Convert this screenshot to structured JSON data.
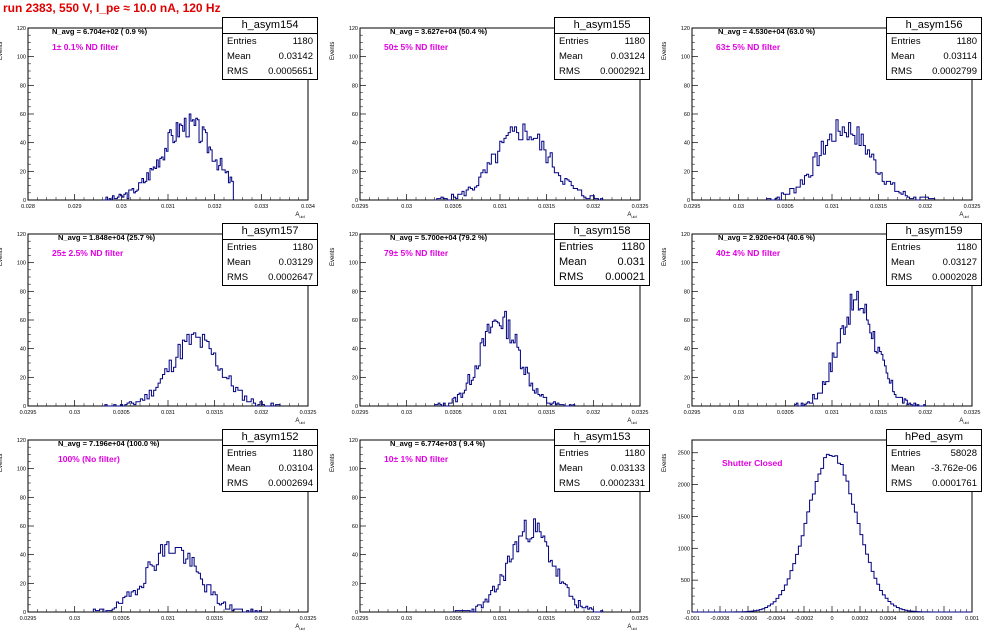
{
  "header": {
    "run_title": "run 2383,   550 V, I_pe ≈ 10.0 nA, 120 Hz"
  },
  "chart_data": [
    {
      "type": "bar",
      "histogram": "h_asym154",
      "n_avg": "N_avg = 6.704e+02 ( 0.9 %)",
      "filter_label": "1± 0.1% ND filter",
      "stats": {
        "entries_label": "Entries",
        "entries": "1180",
        "mean_label": "Mean",
        "mean": "0.03142",
        "rms_label": "RMS",
        "rms": "0.0005651"
      },
      "xlabel": "A_uid",
      "ylabel": "Events",
      "xlim": [
        0.028,
        0.034
      ],
      "ylim": [
        0,
        120
      ],
      "xticks": [
        0.028,
        0.029,
        0.03,
        0.031,
        0.032,
        0.033,
        0.034
      ],
      "xtick_labels": [
        "0.028",
        "0.029",
        "0.03",
        "0.031",
        "0.032",
        "0.033",
        "0.034"
      ],
      "yticks": [
        0,
        20,
        40,
        60,
        80,
        100,
        120
      ],
      "ytick_labels": [
        "0",
        "20",
        "40",
        "60",
        "80",
        "100",
        "120"
      ],
      "mean": 0.03142,
      "sigma": 0.000565,
      "peak": 52,
      "bin_range": [
        0.0296,
        0.0324
      ],
      "nbins": 80,
      "seed": 3
    },
    {
      "type": "bar",
      "histogram": "h_asym155",
      "n_avg": "N_avg = 3.627e+04 (50.4 %)",
      "filter_label": "50± 5% ND filter",
      "stats": {
        "entries_label": "Entries",
        "entries": "1180",
        "mean_label": "Mean",
        "mean": "0.03124",
        "rms_label": "RMS",
        "rms": "0.0002921"
      },
      "xlabel": "A_uid",
      "ylabel": "Events",
      "xlim": [
        0.0295,
        0.0325
      ],
      "ylim": [
        0,
        120
      ],
      "xticks": [
        0.0295,
        0.03,
        0.0305,
        0.031,
        0.0315,
        0.032,
        0.0325
      ],
      "xtick_labels": [
        "0.0295",
        "0.03",
        "0.0305",
        "0.031",
        "0.0315",
        "0.032",
        "0.0325"
      ],
      "yticks": [
        0,
        20,
        40,
        60,
        80,
        100,
        120
      ],
      "ytick_labels": [
        "0",
        "20",
        "40",
        "60",
        "80",
        "100",
        "120"
      ],
      "mean": 0.03124,
      "sigma": 0.00029,
      "peak": 48,
      "bin_range": [
        0.0303,
        0.0321
      ],
      "nbins": 80,
      "seed": 5
    },
    {
      "type": "bar",
      "histogram": "h_asym156",
      "n_avg": "N_avg = 4.530e+04 (63.0 %)",
      "filter_label": "63± 5% ND filter",
      "stats": {
        "entries_label": "Entries",
        "entries": "1180",
        "mean_label": "Mean",
        "mean": "0.03114",
        "rms_label": "RMS",
        "rms": "0.0002799"
      },
      "xlabel": "A_uid",
      "ylabel": "Events",
      "xlim": [
        0.0295,
        0.0325
      ],
      "ylim": [
        0,
        120
      ],
      "xticks": [
        0.0295,
        0.03,
        0.0305,
        0.031,
        0.0315,
        0.032,
        0.0325
      ],
      "xtick_labels": [
        "0.0295",
        "0.03",
        "0.0305",
        "0.031",
        "0.0315",
        "0.032",
        "0.0325"
      ],
      "yticks": [
        0,
        20,
        40,
        60,
        80,
        100,
        120
      ],
      "ytick_labels": [
        "0",
        "20",
        "40",
        "60",
        "80",
        "100",
        "120"
      ],
      "mean": 0.03114,
      "sigma": 0.00028,
      "peak": 50,
      "bin_range": [
        0.0303,
        0.0321
      ],
      "nbins": 80,
      "seed": 7
    },
    {
      "type": "bar",
      "histogram": "h_asym157",
      "n_avg": "N_avg = 1.848e+04 (25.7 %)",
      "filter_label": "25± 2.5% ND filter",
      "stats": {
        "entries_label": "Entries",
        "entries": "1180",
        "mean_label": "Mean",
        "mean": "0.03129",
        "rms_label": "RMS",
        "rms": "0.0002647"
      },
      "xlabel": "A_uid",
      "ylabel": "Events",
      "xlim": [
        0.0295,
        0.0325
      ],
      "ylim": [
        0,
        120
      ],
      "xticks": [
        0.0295,
        0.03,
        0.0305,
        0.031,
        0.0315,
        0.032,
        0.0325
      ],
      "xtick_labels": [
        "0.0295",
        "0.03",
        "0.0305",
        "0.031",
        "0.0315",
        "0.032",
        "0.0325"
      ],
      "yticks": [
        0,
        20,
        40,
        60,
        80,
        100,
        120
      ],
      "ytick_labels": [
        "0",
        "20",
        "40",
        "60",
        "80",
        "100",
        "120"
      ],
      "mean": 0.03129,
      "sigma": 0.000265,
      "peak": 46,
      "bin_range": [
        0.0303,
        0.0322
      ],
      "nbins": 80,
      "seed": 11
    },
    {
      "type": "bar",
      "histogram": "h_asym158",
      "n_avg": "N_avg = 5.700e+04 (79.2 %)",
      "filter_label": "79± 5% ND filter",
      "stats": {
        "entries_label": "Entries",
        "entries": "1180",
        "mean_label": "Mean",
        "mean": "0.031",
        "rms_label": "RMS",
        "rms": "0.00021"
      },
      "xlabel": "A_uid",
      "ylabel": "Events",
      "xlim": [
        0.0295,
        0.0325
      ],
      "ylim": [
        0,
        120
      ],
      "xticks": [
        0.0295,
        0.03,
        0.0305,
        0.031,
        0.0315,
        0.032,
        0.0325
      ],
      "xtick_labels": [
        "0.0295",
        "0.03",
        "0.0305",
        "0.031",
        "0.0315",
        "0.032",
        "0.0325"
      ],
      "yticks": [
        0,
        20,
        40,
        60,
        80,
        100,
        120
      ],
      "ytick_labels": [
        "0",
        "20",
        "40",
        "60",
        "80",
        "100",
        "120"
      ],
      "mean": 0.031,
      "sigma": 0.00021,
      "peak": 60,
      "bin_range": [
        0.0303,
        0.0318
      ],
      "nbins": 80,
      "seed": 13
    },
    {
      "type": "bar",
      "histogram": "h_asym159",
      "n_avg": "N_avg = 2.920e+04 (40.6 %)",
      "filter_label": "40± 4% ND filter",
      "stats": {
        "entries_label": "Entries",
        "entries": "1180",
        "mean_label": "Mean",
        "mean": "0.03127",
        "rms_label": "RMS",
        "rms": "0.0002028"
      },
      "xlabel": "A_uid",
      "ylabel": "Events",
      "xlim": [
        0.0295,
        0.0325
      ],
      "ylim": [
        0,
        120
      ],
      "xticks": [
        0.0295,
        0.03,
        0.0305,
        0.031,
        0.0315,
        0.032,
        0.0325
      ],
      "xtick_labels": [
        "0.0295",
        "0.03",
        "0.0305",
        "0.031",
        "0.0315",
        "0.032",
        "0.0325"
      ],
      "yticks": [
        0,
        20,
        40,
        60,
        80,
        100,
        120
      ],
      "ytick_labels": [
        "0",
        "20",
        "40",
        "60",
        "80",
        "100",
        "120"
      ],
      "mean": 0.03127,
      "sigma": 0.000203,
      "peak": 72,
      "bin_range": [
        0.0306,
        0.032
      ],
      "nbins": 80,
      "seed": 17
    },
    {
      "type": "bar",
      "histogram": "h_asym152",
      "n_avg": "N_avg = 7.196e+04 (100.0 %)",
      "filter_label": "100% (No filter)",
      "stats": {
        "entries_label": "Entries",
        "entries": "1180",
        "mean_label": "Mean",
        "mean": "0.03104",
        "rms_label": "RMS",
        "rms": "0.0002694"
      },
      "xlabel": "A_uid",
      "ylabel": "Events",
      "xlim": [
        0.0295,
        0.0325
      ],
      "ylim": [
        0,
        120
      ],
      "xticks": [
        0.0295,
        0.03,
        0.0305,
        0.031,
        0.0315,
        0.032,
        0.0325
      ],
      "xtick_labels": [
        "0.0295",
        "0.03",
        "0.0305",
        "0.031",
        "0.0315",
        "0.032",
        "0.0325"
      ],
      "yticks": [
        0,
        20,
        40,
        60,
        80,
        100,
        120
      ],
      "ytick_labels": [
        "0",
        "20",
        "40",
        "60",
        "80",
        "100",
        "120"
      ],
      "mean": 0.03104,
      "sigma": 0.00027,
      "peak": 45,
      "bin_range": [
        0.0302,
        0.032
      ],
      "nbins": 80,
      "seed": 19
    },
    {
      "type": "bar",
      "histogram": "h_asym153",
      "n_avg": "N_avg = 6.774e+03 ( 9.4 %)",
      "filter_label": "10± 1% ND filter",
      "stats": {
        "entries_label": "Entries",
        "entries": "1180",
        "mean_label": "Mean",
        "mean": "0.03133",
        "rms_label": "RMS",
        "rms": "0.0002331"
      },
      "xlabel": "A_uid",
      "ylabel": "Events",
      "xlim": [
        0.0295,
        0.0325
      ],
      "ylim": [
        0,
        120
      ],
      "xticks": [
        0.0295,
        0.03,
        0.0305,
        0.031,
        0.0315,
        0.032,
        0.0325
      ],
      "xtick_labels": [
        "0.0295",
        "0.03",
        "0.0305",
        "0.031",
        "0.0315",
        "0.032",
        "0.0325"
      ],
      "yticks": [
        0,
        20,
        40,
        60,
        80,
        100,
        120
      ],
      "ytick_labels": [
        "0",
        "20",
        "40",
        "60",
        "80",
        "100",
        "120"
      ],
      "mean": 0.03133,
      "sigma": 0.000233,
      "peak": 58,
      "bin_range": [
        0.0305,
        0.0321
      ],
      "nbins": 80,
      "seed": 23
    },
    {
      "type": "bar",
      "histogram": "hPed_asym",
      "n_avg": "",
      "filter_label": "Shutter Closed",
      "stats": {
        "entries_label": "Entries",
        "entries": "58028",
        "mean_label": "Mean",
        "mean": "-3.762e-06",
        "rms_label": "RMS",
        "rms": "0.0001761"
      },
      "xlabel": "",
      "ylabel": "Events",
      "xlim": [
        -0.001,
        0.001
      ],
      "ylim": [
        0,
        2700
      ],
      "xticks": [
        -0.001,
        -0.0008,
        -0.0006,
        -0.0004,
        -0.0002,
        0,
        0.0002,
        0.0004,
        0.0006,
        0.0008,
        0.001
      ],
      "xtick_labels": [
        "-0.001",
        "-0.0008",
        "-0.0006",
        "-0.0004",
        "-0.0002",
        "0",
        "0.0002",
        "0.0004",
        "0.0006",
        "0.0008",
        "0.001"
      ],
      "yticks": [
        0,
        500,
        1000,
        1500,
        2000,
        2500
      ],
      "ytick_labels": [
        "0",
        "500",
        "1000",
        "1500",
        "2000",
        "2500"
      ],
      "mean": 0.0,
      "sigma": 0.000176,
      "peak": 2480,
      "bin_range": [
        -0.001,
        0.001
      ],
      "nbins": 100,
      "seed": 29
    }
  ]
}
